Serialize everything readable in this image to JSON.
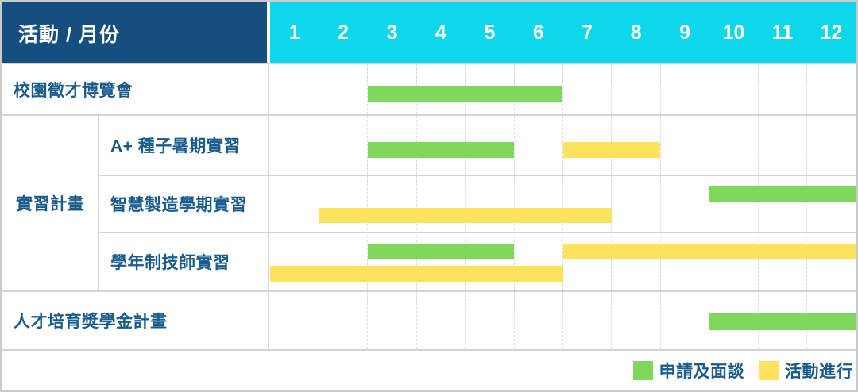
{
  "header": {
    "title": "活動 / 月份",
    "months": [
      "1",
      "2",
      "3",
      "4",
      "5",
      "6",
      "7",
      "8",
      "9",
      "10",
      "11",
      "12"
    ]
  },
  "colors": {
    "header_bg": "#144F80",
    "months_bg": "#0ED7EC",
    "label_text": "#1A5B8D",
    "apply": "#7FD75C",
    "ongoing": "#FFE35F"
  },
  "chart_data": {
    "type": "gantt",
    "title": "活動 / 月份",
    "x_axis": {
      "unit": "月份",
      "ticks": [
        "1",
        "2",
        "3",
        "4",
        "5",
        "6",
        "7",
        "8",
        "9",
        "10",
        "11",
        "12"
      ],
      "range": [
        1,
        12
      ]
    },
    "legend_position": "bottom-right",
    "grid": true,
    "row_groups": [
      {
        "label": "實習計畫",
        "row_indexes": [
          1,
          2,
          3
        ]
      }
    ],
    "rows": [
      {
        "label": "校園徵才博覽會",
        "lines": [
          [
            {
              "kind": "apply",
              "start": 3,
              "end": 6
            }
          ]
        ]
      },
      {
        "label": "A+ 種子暑期實習",
        "lines": [
          [
            {
              "kind": "apply",
              "start": 3,
              "end": 5
            },
            {
              "kind": "ongoing",
              "start": 7,
              "end": 8
            }
          ]
        ]
      },
      {
        "label": "智慧製造學期實習",
        "lines": [
          [
            {
              "kind": "apply",
              "start": 10,
              "end": 12
            }
          ],
          [
            {
              "kind": "ongoing",
              "start": 2,
              "end": 7
            }
          ]
        ]
      },
      {
        "label": "學年制技師實習",
        "lines": [
          [
            {
              "kind": "apply",
              "start": 3,
              "end": 5
            },
            {
              "kind": "ongoing",
              "start": 7,
              "end": 12
            }
          ],
          [
            {
              "kind": "ongoing",
              "start": 1,
              "end": 6
            }
          ]
        ]
      },
      {
        "label": "人才培育獎學金計畫",
        "lines": [
          [
            {
              "kind": "apply",
              "start": 10,
              "end": 12
            }
          ]
        ]
      }
    ],
    "legend": [
      {
        "key": "apply",
        "label": "申請及面談",
        "color": "#7FD75C"
      },
      {
        "key": "ongoing",
        "label": "活動進行",
        "color": "#FFE35F"
      }
    ]
  }
}
